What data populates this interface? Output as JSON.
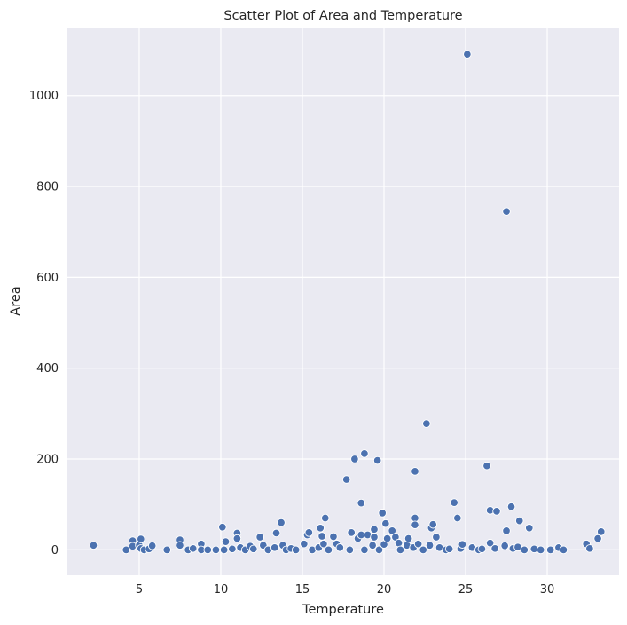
{
  "chart_data": {
    "type": "scatter",
    "title": "Scatter Plot of Area and Temperature",
    "xlabel": "Temperature",
    "ylabel": "Area",
    "xlim": [
      0.6,
      34.4
    ],
    "ylim": [
      -56,
      1150
    ],
    "xticks": [
      5,
      10,
      15,
      20,
      25,
      30
    ],
    "yticks": [
      0,
      200,
      400,
      600,
      800,
      1000
    ],
    "grid": true,
    "colors": {
      "background": "#eaeaf2",
      "point": "#4c72b0",
      "grid": "#ffffff"
    },
    "points": [
      {
        "x": 2.2,
        "y": 10
      },
      {
        "x": 4.2,
        "y": 0
      },
      {
        "x": 4.6,
        "y": 20
      },
      {
        "x": 4.6,
        "y": 8
      },
      {
        "x": 5.0,
        "y": 10
      },
      {
        "x": 5.1,
        "y": 24
      },
      {
        "x": 5.1,
        "y": 3
      },
      {
        "x": 5.3,
        "y": 0
      },
      {
        "x": 5.6,
        "y": 2
      },
      {
        "x": 5.8,
        "y": 9
      },
      {
        "x": 6.7,
        "y": 0
      },
      {
        "x": 7.5,
        "y": 22
      },
      {
        "x": 7.5,
        "y": 10
      },
      {
        "x": 8.0,
        "y": 0
      },
      {
        "x": 8.3,
        "y": 3
      },
      {
        "x": 8.8,
        "y": 13
      },
      {
        "x": 8.8,
        "y": 0
      },
      {
        "x": 9.2,
        "y": 0
      },
      {
        "x": 9.7,
        "y": 0
      },
      {
        "x": 10.1,
        "y": 50
      },
      {
        "x": 10.2,
        "y": 0
      },
      {
        "x": 10.3,
        "y": 18
      },
      {
        "x": 10.7,
        "y": 2
      },
      {
        "x": 11.0,
        "y": 37
      },
      {
        "x": 11.0,
        "y": 25
      },
      {
        "x": 11.2,
        "y": 5
      },
      {
        "x": 11.5,
        "y": 0
      },
      {
        "x": 11.8,
        "y": 8
      },
      {
        "x": 12.0,
        "y": 2
      },
      {
        "x": 12.4,
        "y": 28
      },
      {
        "x": 12.6,
        "y": 10
      },
      {
        "x": 12.9,
        "y": 0
      },
      {
        "x": 13.3,
        "y": 5
      },
      {
        "x": 13.4,
        "y": 37
      },
      {
        "x": 13.7,
        "y": 60
      },
      {
        "x": 13.8,
        "y": 10
      },
      {
        "x": 14.0,
        "y": 0
      },
      {
        "x": 14.3,
        "y": 3
      },
      {
        "x": 14.6,
        "y": 0
      },
      {
        "x": 15.1,
        "y": 13
      },
      {
        "x": 15.3,
        "y": 33
      },
      {
        "x": 15.4,
        "y": 38
      },
      {
        "x": 15.6,
        "y": 0
      },
      {
        "x": 16.0,
        "y": 5
      },
      {
        "x": 16.1,
        "y": 48
      },
      {
        "x": 16.2,
        "y": 30
      },
      {
        "x": 16.3,
        "y": 13
      },
      {
        "x": 16.4,
        "y": 70
      },
      {
        "x": 16.6,
        "y": 0
      },
      {
        "x": 16.9,
        "y": 29
      },
      {
        "x": 17.1,
        "y": 13
      },
      {
        "x": 17.3,
        "y": 5
      },
      {
        "x": 17.7,
        "y": 155
      },
      {
        "x": 17.9,
        "y": 0
      },
      {
        "x": 18.0,
        "y": 38
      },
      {
        "x": 18.2,
        "y": 200
      },
      {
        "x": 18.4,
        "y": 25
      },
      {
        "x": 18.6,
        "y": 103
      },
      {
        "x": 18.6,
        "y": 33
      },
      {
        "x": 18.8,
        "y": 212
      },
      {
        "x": 18.8,
        "y": 0
      },
      {
        "x": 19.0,
        "y": 33
      },
      {
        "x": 19.3,
        "y": 10
      },
      {
        "x": 19.4,
        "y": 45
      },
      {
        "x": 19.4,
        "y": 28
      },
      {
        "x": 19.6,
        "y": 197
      },
      {
        "x": 19.7,
        "y": 0
      },
      {
        "x": 19.9,
        "y": 81
      },
      {
        "x": 20.0,
        "y": 12
      },
      {
        "x": 20.1,
        "y": 58
      },
      {
        "x": 20.2,
        "y": 25
      },
      {
        "x": 20.5,
        "y": 42
      },
      {
        "x": 20.7,
        "y": 28
      },
      {
        "x": 20.9,
        "y": 15
      },
      {
        "x": 21.0,
        "y": 0
      },
      {
        "x": 21.4,
        "y": 10
      },
      {
        "x": 21.5,
        "y": 25
      },
      {
        "x": 21.8,
        "y": 5
      },
      {
        "x": 21.9,
        "y": 70
      },
      {
        "x": 21.9,
        "y": 55
      },
      {
        "x": 21.9,
        "y": 173
      },
      {
        "x": 22.1,
        "y": 13
      },
      {
        "x": 22.4,
        "y": 0
      },
      {
        "x": 22.6,
        "y": 278
      },
      {
        "x": 22.8,
        "y": 10
      },
      {
        "x": 22.9,
        "y": 48
      },
      {
        "x": 23.0,
        "y": 56
      },
      {
        "x": 23.2,
        "y": 28
      },
      {
        "x": 23.4,
        "y": 5
      },
      {
        "x": 23.8,
        "y": 0
      },
      {
        "x": 24.0,
        "y": 2
      },
      {
        "x": 24.3,
        "y": 104
      },
      {
        "x": 24.5,
        "y": 70
      },
      {
        "x": 24.7,
        "y": 3
      },
      {
        "x": 24.8,
        "y": 12
      },
      {
        "x": 25.1,
        "y": 1091
      },
      {
        "x": 25.4,
        "y": 5
      },
      {
        "x": 25.8,
        "y": 0
      },
      {
        "x": 26.0,
        "y": 2
      },
      {
        "x": 26.3,
        "y": 185
      },
      {
        "x": 26.5,
        "y": 87
      },
      {
        "x": 26.5,
        "y": 15
      },
      {
        "x": 26.8,
        "y": 3
      },
      {
        "x": 26.9,
        "y": 85
      },
      {
        "x": 27.4,
        "y": 9
      },
      {
        "x": 27.5,
        "y": 745
      },
      {
        "x": 27.5,
        "y": 42
      },
      {
        "x": 27.8,
        "y": 95
      },
      {
        "x": 27.9,
        "y": 3
      },
      {
        "x": 28.2,
        "y": 6
      },
      {
        "x": 28.3,
        "y": 64
      },
      {
        "x": 28.6,
        "y": 0
      },
      {
        "x": 28.9,
        "y": 48
      },
      {
        "x": 29.2,
        "y": 2
      },
      {
        "x": 29.6,
        "y": 0
      },
      {
        "x": 30.2,
        "y": 0
      },
      {
        "x": 30.7,
        "y": 5
      },
      {
        "x": 31.0,
        "y": 0
      },
      {
        "x": 32.4,
        "y": 13
      },
      {
        "x": 32.6,
        "y": 3
      },
      {
        "x": 33.1,
        "y": 25
      },
      {
        "x": 33.3,
        "y": 40
      }
    ]
  }
}
